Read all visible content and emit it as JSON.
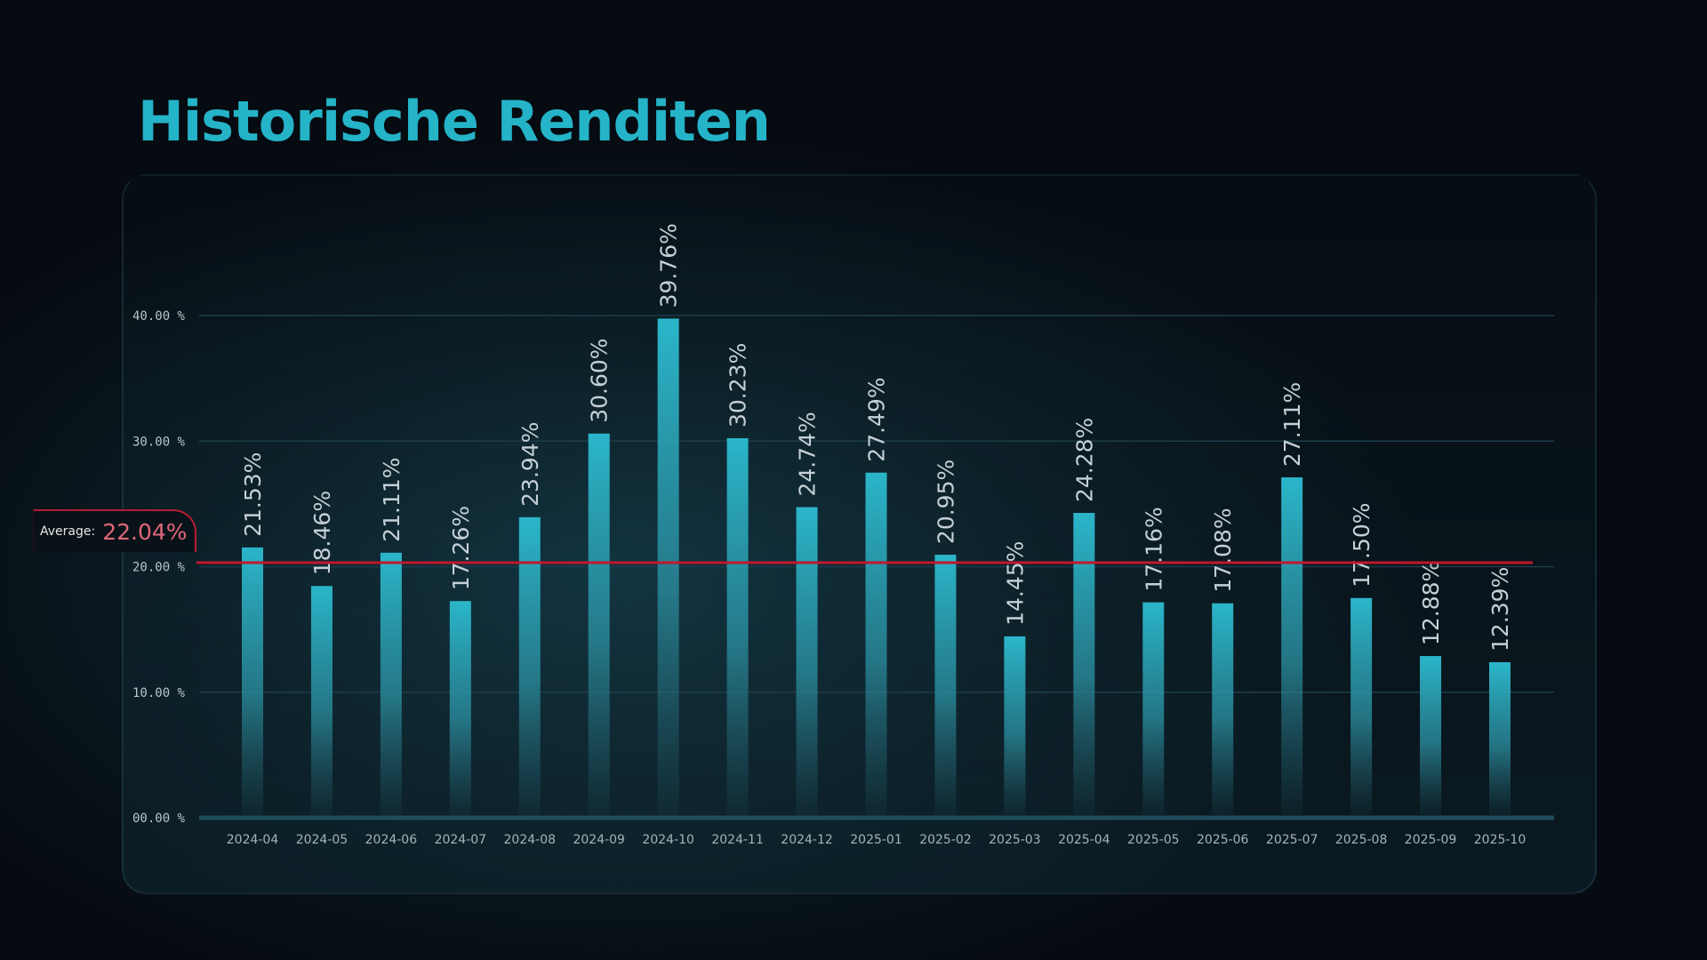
{
  "title": "Historische Renditen",
  "average": {
    "label": "Average:",
    "value_text": "22.04%",
    "value": 22.04
  },
  "colors": {
    "title": "#25b3c8",
    "bar": "#2bb6ca",
    "average_line": "#c0182e",
    "grid": "#1d3d48"
  },
  "chart_data": {
    "type": "bar",
    "title": "Historische Renditen",
    "xlabel": "",
    "ylabel": "",
    "ylim": [
      0,
      40
    ],
    "yticks": [
      "00.00 %",
      "10.00 %",
      "20.00 %",
      "30.00 %",
      "40.00 %"
    ],
    "ytick_values": [
      0,
      10,
      20,
      30,
      40
    ],
    "grid": true,
    "categories": [
      "2024-04",
      "2024-05",
      "2024-06",
      "2024-07",
      "2024-08",
      "2024-09",
      "2024-10",
      "2024-11",
      "2024-12",
      "2025-01",
      "2025-02",
      "2025-03",
      "2025-04",
      "2025-05",
      "2025-06",
      "2025-07",
      "2025-08",
      "2025-09",
      "2025-10"
    ],
    "values": [
      21.53,
      18.46,
      21.11,
      17.26,
      23.94,
      30.6,
      39.76,
      30.23,
      24.74,
      27.49,
      20.95,
      14.45,
      24.28,
      17.16,
      17.08,
      27.11,
      17.5,
      12.88,
      12.39
    ],
    "labels": [
      "21.53%",
      "18.46%",
      "21.11%",
      "17.26%",
      "23.94%",
      "30.60%",
      "39.76%",
      "30.23%",
      "24.74%",
      "27.49%",
      "20.95%",
      "14.45%",
      "24.28%",
      "17.16%",
      "17.08%",
      "27.11%",
      "17.50%",
      "12.88%",
      "12.39%"
    ],
    "average": 22.04
  }
}
